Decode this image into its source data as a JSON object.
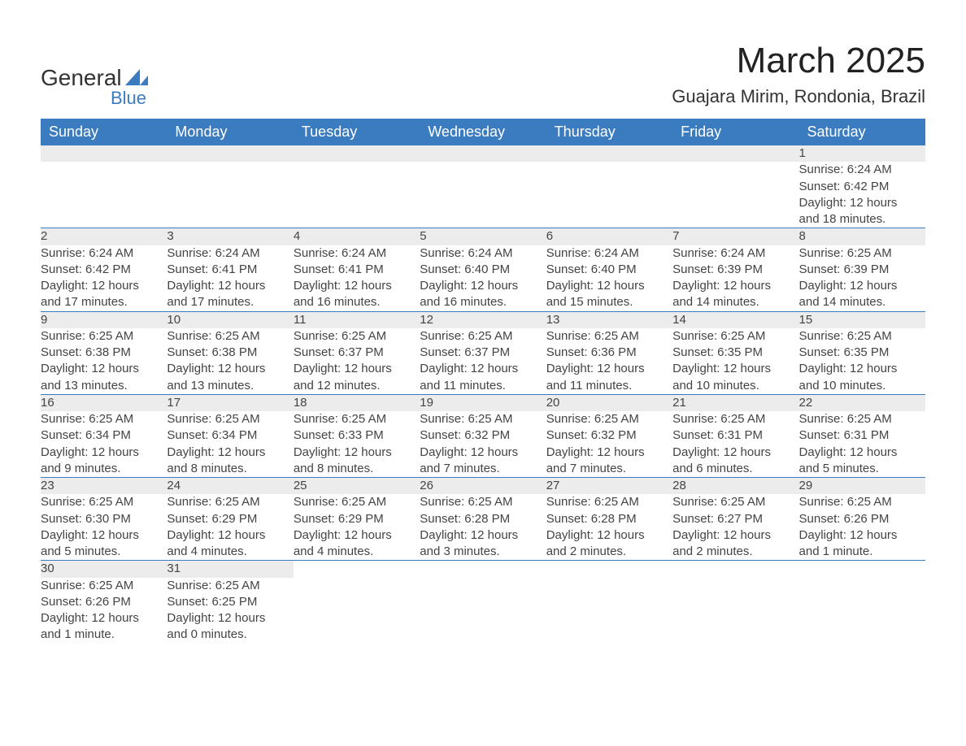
{
  "logo": {
    "word1": "General",
    "word2": "Blue",
    "mark_color": "#3b7bbf"
  },
  "title": "March 2025",
  "subtitle": "Guajara Mirim, Rondonia, Brazil",
  "colors": {
    "header_bg": "#3b7bbf",
    "header_text": "#ffffff",
    "daynum_bg": "#ececec",
    "row_border": "#3b7bbf",
    "body_text": "#444444"
  },
  "fonts": {
    "title_size_pt": 33,
    "subtitle_size_pt": 17,
    "header_size_pt": 14,
    "cell_size_pt": 11
  },
  "weekdays": [
    "Sunday",
    "Monday",
    "Tuesday",
    "Wednesday",
    "Thursday",
    "Friday",
    "Saturday"
  ],
  "weeks": [
    [
      null,
      null,
      null,
      null,
      null,
      null,
      {
        "n": "1",
        "sunrise": "Sunrise: 6:24 AM",
        "sunset": "Sunset: 6:42 PM",
        "dl1": "Daylight: 12 hours",
        "dl2": "and 18 minutes."
      }
    ],
    [
      {
        "n": "2",
        "sunrise": "Sunrise: 6:24 AM",
        "sunset": "Sunset: 6:42 PM",
        "dl1": "Daylight: 12 hours",
        "dl2": "and 17 minutes."
      },
      {
        "n": "3",
        "sunrise": "Sunrise: 6:24 AM",
        "sunset": "Sunset: 6:41 PM",
        "dl1": "Daylight: 12 hours",
        "dl2": "and 17 minutes."
      },
      {
        "n": "4",
        "sunrise": "Sunrise: 6:24 AM",
        "sunset": "Sunset: 6:41 PM",
        "dl1": "Daylight: 12 hours",
        "dl2": "and 16 minutes."
      },
      {
        "n": "5",
        "sunrise": "Sunrise: 6:24 AM",
        "sunset": "Sunset: 6:40 PM",
        "dl1": "Daylight: 12 hours",
        "dl2": "and 16 minutes."
      },
      {
        "n": "6",
        "sunrise": "Sunrise: 6:24 AM",
        "sunset": "Sunset: 6:40 PM",
        "dl1": "Daylight: 12 hours",
        "dl2": "and 15 minutes."
      },
      {
        "n": "7",
        "sunrise": "Sunrise: 6:24 AM",
        "sunset": "Sunset: 6:39 PM",
        "dl1": "Daylight: 12 hours",
        "dl2": "and 14 minutes."
      },
      {
        "n": "8",
        "sunrise": "Sunrise: 6:25 AM",
        "sunset": "Sunset: 6:39 PM",
        "dl1": "Daylight: 12 hours",
        "dl2": "and 14 minutes."
      }
    ],
    [
      {
        "n": "9",
        "sunrise": "Sunrise: 6:25 AM",
        "sunset": "Sunset: 6:38 PM",
        "dl1": "Daylight: 12 hours",
        "dl2": "and 13 minutes."
      },
      {
        "n": "10",
        "sunrise": "Sunrise: 6:25 AM",
        "sunset": "Sunset: 6:38 PM",
        "dl1": "Daylight: 12 hours",
        "dl2": "and 13 minutes."
      },
      {
        "n": "11",
        "sunrise": "Sunrise: 6:25 AM",
        "sunset": "Sunset: 6:37 PM",
        "dl1": "Daylight: 12 hours",
        "dl2": "and 12 minutes."
      },
      {
        "n": "12",
        "sunrise": "Sunrise: 6:25 AM",
        "sunset": "Sunset: 6:37 PM",
        "dl1": "Daylight: 12 hours",
        "dl2": "and 11 minutes."
      },
      {
        "n": "13",
        "sunrise": "Sunrise: 6:25 AM",
        "sunset": "Sunset: 6:36 PM",
        "dl1": "Daylight: 12 hours",
        "dl2": "and 11 minutes."
      },
      {
        "n": "14",
        "sunrise": "Sunrise: 6:25 AM",
        "sunset": "Sunset: 6:35 PM",
        "dl1": "Daylight: 12 hours",
        "dl2": "and 10 minutes."
      },
      {
        "n": "15",
        "sunrise": "Sunrise: 6:25 AM",
        "sunset": "Sunset: 6:35 PM",
        "dl1": "Daylight: 12 hours",
        "dl2": "and 10 minutes."
      }
    ],
    [
      {
        "n": "16",
        "sunrise": "Sunrise: 6:25 AM",
        "sunset": "Sunset: 6:34 PM",
        "dl1": "Daylight: 12 hours",
        "dl2": "and 9 minutes."
      },
      {
        "n": "17",
        "sunrise": "Sunrise: 6:25 AM",
        "sunset": "Sunset: 6:34 PM",
        "dl1": "Daylight: 12 hours",
        "dl2": "and 8 minutes."
      },
      {
        "n": "18",
        "sunrise": "Sunrise: 6:25 AM",
        "sunset": "Sunset: 6:33 PM",
        "dl1": "Daylight: 12 hours",
        "dl2": "and 8 minutes."
      },
      {
        "n": "19",
        "sunrise": "Sunrise: 6:25 AM",
        "sunset": "Sunset: 6:32 PM",
        "dl1": "Daylight: 12 hours",
        "dl2": "and 7 minutes."
      },
      {
        "n": "20",
        "sunrise": "Sunrise: 6:25 AM",
        "sunset": "Sunset: 6:32 PM",
        "dl1": "Daylight: 12 hours",
        "dl2": "and 7 minutes."
      },
      {
        "n": "21",
        "sunrise": "Sunrise: 6:25 AM",
        "sunset": "Sunset: 6:31 PM",
        "dl1": "Daylight: 12 hours",
        "dl2": "and 6 minutes."
      },
      {
        "n": "22",
        "sunrise": "Sunrise: 6:25 AM",
        "sunset": "Sunset: 6:31 PM",
        "dl1": "Daylight: 12 hours",
        "dl2": "and 5 minutes."
      }
    ],
    [
      {
        "n": "23",
        "sunrise": "Sunrise: 6:25 AM",
        "sunset": "Sunset: 6:30 PM",
        "dl1": "Daylight: 12 hours",
        "dl2": "and 5 minutes."
      },
      {
        "n": "24",
        "sunrise": "Sunrise: 6:25 AM",
        "sunset": "Sunset: 6:29 PM",
        "dl1": "Daylight: 12 hours",
        "dl2": "and 4 minutes."
      },
      {
        "n": "25",
        "sunrise": "Sunrise: 6:25 AM",
        "sunset": "Sunset: 6:29 PM",
        "dl1": "Daylight: 12 hours",
        "dl2": "and 4 minutes."
      },
      {
        "n": "26",
        "sunrise": "Sunrise: 6:25 AM",
        "sunset": "Sunset: 6:28 PM",
        "dl1": "Daylight: 12 hours",
        "dl2": "and 3 minutes."
      },
      {
        "n": "27",
        "sunrise": "Sunrise: 6:25 AM",
        "sunset": "Sunset: 6:28 PM",
        "dl1": "Daylight: 12 hours",
        "dl2": "and 2 minutes."
      },
      {
        "n": "28",
        "sunrise": "Sunrise: 6:25 AM",
        "sunset": "Sunset: 6:27 PM",
        "dl1": "Daylight: 12 hours",
        "dl2": "and 2 minutes."
      },
      {
        "n": "29",
        "sunrise": "Sunrise: 6:25 AM",
        "sunset": "Sunset: 6:26 PM",
        "dl1": "Daylight: 12 hours",
        "dl2": "and 1 minute."
      }
    ],
    [
      {
        "n": "30",
        "sunrise": "Sunrise: 6:25 AM",
        "sunset": "Sunset: 6:26 PM",
        "dl1": "Daylight: 12 hours",
        "dl2": "and 1 minute."
      },
      {
        "n": "31",
        "sunrise": "Sunrise: 6:25 AM",
        "sunset": "Sunset: 6:25 PM",
        "dl1": "Daylight: 12 hours",
        "dl2": "and 0 minutes."
      },
      null,
      null,
      null,
      null,
      null
    ]
  ]
}
